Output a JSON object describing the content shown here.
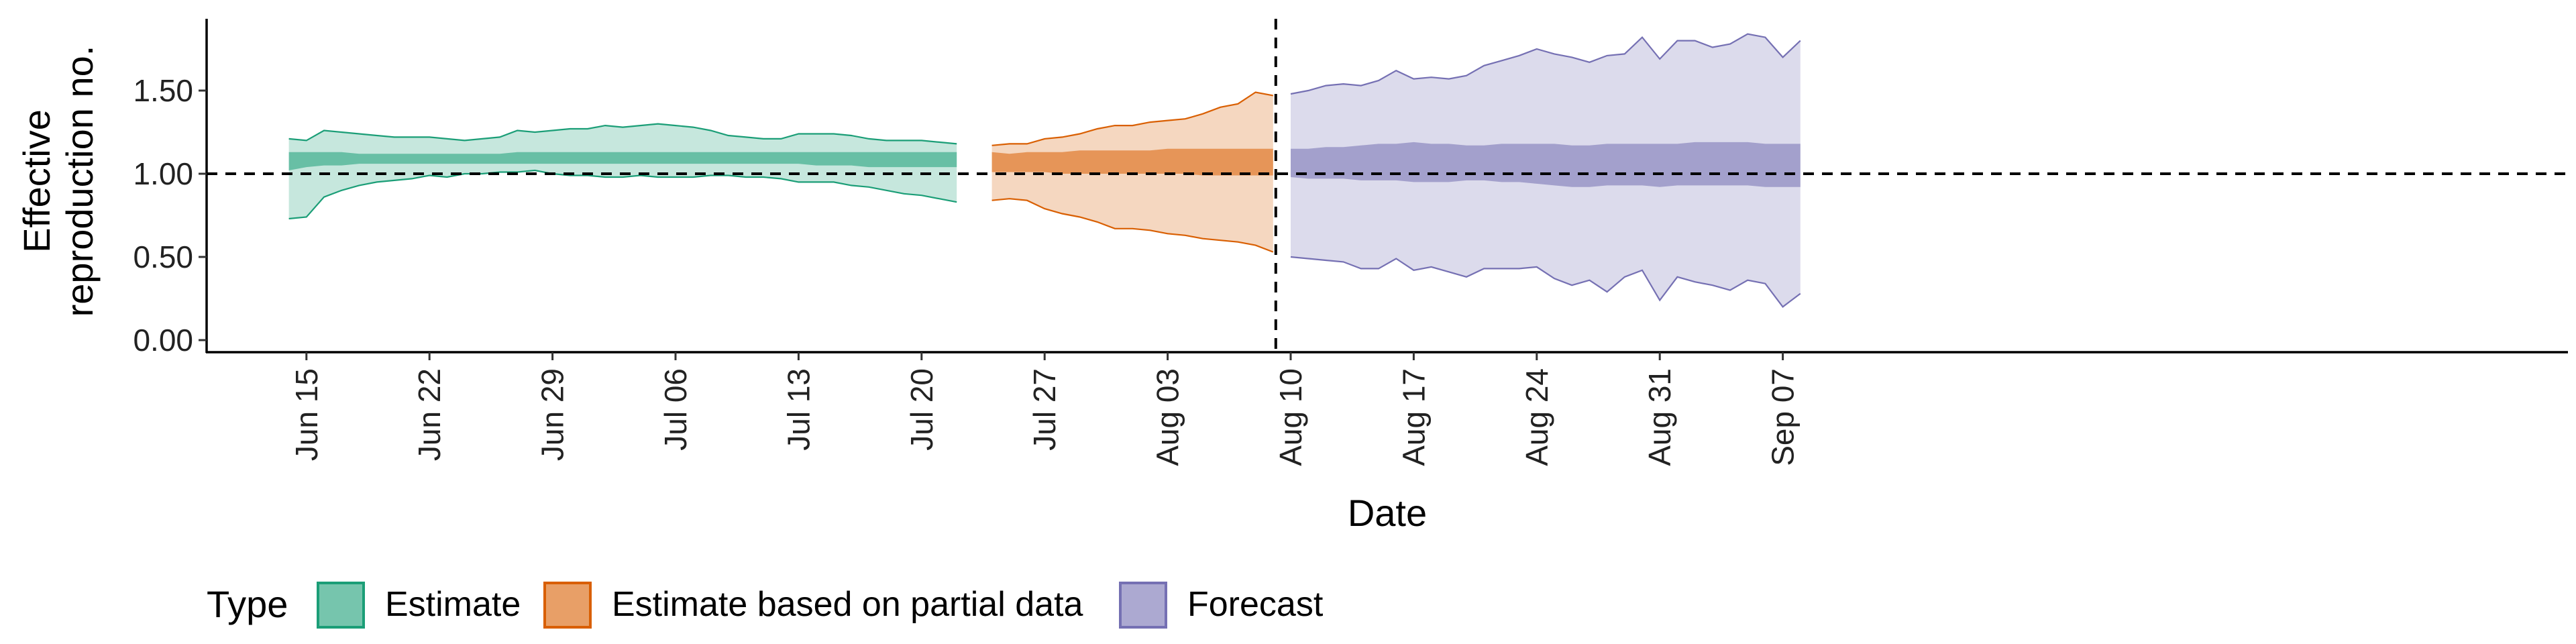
{
  "chart_data": {
    "type": "area",
    "xlabel": "Date",
    "ylabel": [
      "Effective",
      "reproduction no."
    ],
    "ylim": [
      0,
      1.9
    ],
    "yticks": [
      0,
      0.5,
      1.0,
      1.5
    ],
    "ytick_labels": [
      "0.00",
      "0.50",
      "1.00",
      "1.50"
    ],
    "xlim": [
      "2020-06-11",
      "2020-09-12"
    ],
    "xticks": [
      "2020-06-15",
      "2020-06-22",
      "2020-06-29",
      "2020-07-06",
      "2020-07-13",
      "2020-07-20",
      "2020-07-27",
      "2020-08-03",
      "2020-08-10",
      "2020-08-17",
      "2020-08-24",
      "2020-08-31",
      "2020-09-07"
    ],
    "xtick_labels": [
      "Jun 15",
      "Jun 22",
      "Jun 29",
      "Jul 06",
      "Jul 13",
      "Jul 20",
      "Jul 27",
      "Aug 03",
      "Aug 10",
      "Aug 17",
      "Aug 24",
      "Aug 31",
      "Sep 07"
    ],
    "reference_line_y": 1.0,
    "forecast_start_line": "2020-08-09",
    "legend_title": "Type",
    "legend_position": "bottom",
    "series": [
      {
        "name": "Estimate",
        "color_fill": "#1b9e77",
        "color_line": "#1b9e77",
        "dates": [
          "2020-06-14",
          "2020-06-15",
          "2020-06-16",
          "2020-06-17",
          "2020-06-18",
          "2020-06-19",
          "2020-06-20",
          "2020-06-21",
          "2020-06-22",
          "2020-06-23",
          "2020-06-24",
          "2020-06-25",
          "2020-06-26",
          "2020-06-27",
          "2020-06-28",
          "2020-06-29",
          "2020-06-30",
          "2020-07-01",
          "2020-07-02",
          "2020-07-03",
          "2020-07-04",
          "2020-07-05",
          "2020-07-06",
          "2020-07-07",
          "2020-07-08",
          "2020-07-09",
          "2020-07-10",
          "2020-07-11",
          "2020-07-12",
          "2020-07-13",
          "2020-07-14",
          "2020-07-15",
          "2020-07-16",
          "2020-07-17",
          "2020-07-18",
          "2020-07-19",
          "2020-07-20",
          "2020-07-21",
          "2020-07-22"
        ],
        "upper90": [
          1.21,
          1.2,
          1.26,
          1.25,
          1.24,
          1.23,
          1.22,
          1.22,
          1.22,
          1.21,
          1.2,
          1.21,
          1.22,
          1.26,
          1.25,
          1.26,
          1.27,
          1.27,
          1.29,
          1.28,
          1.29,
          1.3,
          1.29,
          1.28,
          1.26,
          1.23,
          1.22,
          1.21,
          1.21,
          1.24,
          1.24,
          1.24,
          1.23,
          1.21,
          1.2,
          1.2,
          1.2,
          1.19,
          1.18
        ],
        "lower90": [
          0.73,
          0.74,
          0.86,
          0.9,
          0.93,
          0.95,
          0.96,
          0.97,
          0.99,
          0.98,
          1.0,
          1.0,
          1.01,
          1.01,
          1.02,
          1.0,
          0.99,
          0.99,
          0.98,
          0.98,
          0.99,
          0.98,
          0.98,
          0.98,
          0.99,
          0.99,
          0.98,
          0.98,
          0.97,
          0.95,
          0.95,
          0.95,
          0.93,
          0.92,
          0.9,
          0.88,
          0.87,
          0.85,
          0.83
        ],
        "upper50": [
          1.13,
          1.13,
          1.13,
          1.13,
          1.12,
          1.12,
          1.12,
          1.12,
          1.12,
          1.12,
          1.12,
          1.12,
          1.12,
          1.13,
          1.13,
          1.13,
          1.13,
          1.13,
          1.13,
          1.13,
          1.13,
          1.13,
          1.13,
          1.13,
          1.13,
          1.13,
          1.13,
          1.13,
          1.13,
          1.13,
          1.13,
          1.13,
          1.13,
          1.13,
          1.13,
          1.13,
          1.13,
          1.13,
          1.13
        ],
        "lower50": [
          1.02,
          1.04,
          1.05,
          1.05,
          1.06,
          1.06,
          1.06,
          1.06,
          1.06,
          1.06,
          1.06,
          1.06,
          1.06,
          1.06,
          1.06,
          1.06,
          1.06,
          1.06,
          1.06,
          1.06,
          1.06,
          1.06,
          1.06,
          1.06,
          1.06,
          1.06,
          1.06,
          1.06,
          1.06,
          1.06,
          1.05,
          1.05,
          1.05,
          1.04,
          1.04,
          1.04,
          1.04,
          1.04,
          1.04
        ]
      },
      {
        "name": "Estimate based on partial data",
        "color_fill": "#d95f02",
        "color_line": "#d95f02",
        "dates": [
          "2020-07-24",
          "2020-07-25",
          "2020-07-26",
          "2020-07-27",
          "2020-07-28",
          "2020-07-29",
          "2020-07-30",
          "2020-07-31",
          "2020-08-01",
          "2020-08-02",
          "2020-08-03",
          "2020-08-04",
          "2020-08-05",
          "2020-08-06",
          "2020-08-07",
          "2020-08-08",
          "2020-08-09"
        ],
        "upper90": [
          1.17,
          1.18,
          1.18,
          1.21,
          1.22,
          1.24,
          1.27,
          1.29,
          1.29,
          1.31,
          1.32,
          1.33,
          1.36,
          1.4,
          1.42,
          1.49,
          1.47
        ],
        "lower90": [
          0.84,
          0.85,
          0.84,
          0.79,
          0.76,
          0.74,
          0.71,
          0.67,
          0.67,
          0.66,
          0.64,
          0.63,
          0.61,
          0.6,
          0.59,
          0.57,
          0.53
        ],
        "upper50": [
          1.13,
          1.12,
          1.13,
          1.13,
          1.13,
          1.14,
          1.14,
          1.14,
          1.14,
          1.14,
          1.15,
          1.15,
          1.15,
          1.15,
          1.15,
          1.15,
          1.15
        ],
        "lower50": [
          1.01,
          1.01,
          1.01,
          1.01,
          1.0,
          1.0,
          1.0,
          1.0,
          1.0,
          1.0,
          1.0,
          1.0,
          0.99,
          0.99,
          0.99,
          0.99,
          0.99
        ]
      },
      {
        "name": "Forecast",
        "color_fill": "#7570b3",
        "color_line": "#7570b3",
        "dates": [
          "2020-08-10",
          "2020-08-11",
          "2020-08-12",
          "2020-08-13",
          "2020-08-14",
          "2020-08-15",
          "2020-08-16",
          "2020-08-17",
          "2020-08-18",
          "2020-08-19",
          "2020-08-20",
          "2020-08-21",
          "2020-08-22",
          "2020-08-23",
          "2020-08-24",
          "2020-08-25",
          "2020-08-26",
          "2020-08-27",
          "2020-08-28",
          "2020-08-29",
          "2020-08-30",
          "2020-08-31",
          "2020-09-01",
          "2020-09-02",
          "2020-09-03",
          "2020-09-04",
          "2020-09-05",
          "2020-09-06",
          "2020-09-07",
          "2020-09-08"
        ],
        "upper90": [
          1.48,
          1.5,
          1.53,
          1.54,
          1.53,
          1.56,
          1.62,
          1.57,
          1.58,
          1.57,
          1.59,
          1.65,
          1.68,
          1.71,
          1.75,
          1.72,
          1.7,
          1.67,
          1.71,
          1.72,
          1.82,
          1.69,
          1.8,
          1.8,
          1.76,
          1.78,
          1.84,
          1.82,
          1.7,
          1.8
        ],
        "lower90": [
          0.5,
          0.49,
          0.48,
          0.47,
          0.43,
          0.43,
          0.49,
          0.42,
          0.44,
          0.41,
          0.38,
          0.43,
          0.43,
          0.43,
          0.44,
          0.37,
          0.33,
          0.36,
          0.29,
          0.38,
          0.42,
          0.24,
          0.38,
          0.35,
          0.33,
          0.3,
          0.36,
          0.34,
          0.2,
          0.28
        ],
        "upper50": [
          1.15,
          1.15,
          1.16,
          1.16,
          1.17,
          1.18,
          1.18,
          1.19,
          1.18,
          1.18,
          1.17,
          1.17,
          1.18,
          1.18,
          1.18,
          1.18,
          1.17,
          1.17,
          1.18,
          1.18,
          1.18,
          1.18,
          1.18,
          1.19,
          1.19,
          1.19,
          1.19,
          1.18,
          1.18,
          1.18
        ],
        "lower50": [
          0.98,
          0.97,
          0.97,
          0.97,
          0.96,
          0.96,
          0.96,
          0.95,
          0.95,
          0.95,
          0.96,
          0.96,
          0.95,
          0.95,
          0.94,
          0.93,
          0.92,
          0.92,
          0.93,
          0.93,
          0.93,
          0.92,
          0.93,
          0.93,
          0.93,
          0.93,
          0.93,
          0.92,
          0.92,
          0.92
        ]
      }
    ]
  }
}
